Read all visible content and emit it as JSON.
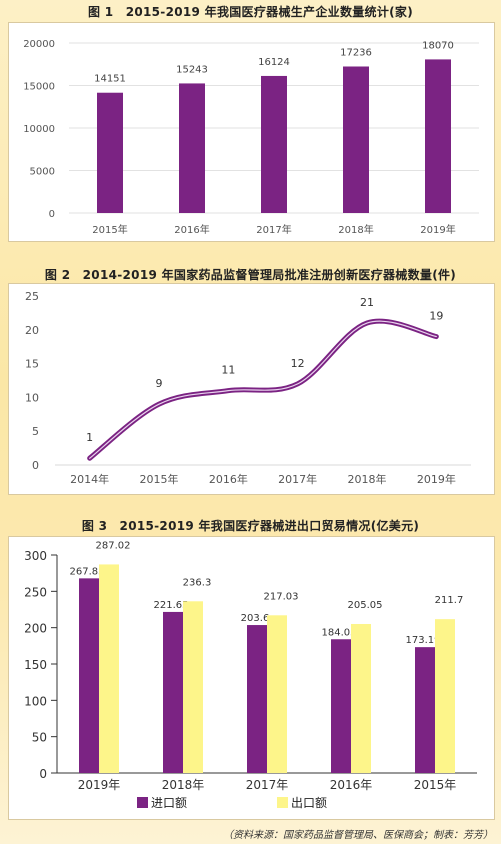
{
  "charts": [
    {
      "type": "bar",
      "title": "图 1　2015-2019 年我国医疗器械生产企业数量统计(家)",
      "categories": [
        "2015年",
        "2016年",
        "2017年",
        "2018年",
        "2019年"
      ],
      "values": [
        14151,
        15243,
        16124,
        17236,
        18070
      ],
      "value_labels": [
        "14151",
        "15243",
        "16124",
        "17236",
        "18070"
      ],
      "yticks": [
        "0",
        "5000",
        "10000",
        "15000",
        "20000"
      ],
      "ylim": [
        0,
        20000
      ],
      "color": "#7b2383"
    },
    {
      "type": "line",
      "title": "图 2　2014-2019 年国家药品监督管理局批准注册创新医疗器械数量(件)",
      "categories": [
        "2014年",
        "2015年",
        "2016年",
        "2017年",
        "2018年",
        "2019年"
      ],
      "values": [
        1,
        9,
        11,
        12,
        21,
        19
      ],
      "value_labels": [
        "1",
        "9",
        "11",
        "12",
        "21",
        "19"
      ],
      "yticks": [
        "0",
        "5",
        "10",
        "15",
        "20",
        "25"
      ],
      "ylim": [
        0,
        25
      ],
      "color": "#7b2383"
    },
    {
      "type": "bar",
      "title": "图 3　2015-2019 年我国医疗器械进出口贸易情况(亿美元)",
      "categories": [
        "2019年",
        "2018年",
        "2017年",
        "2016年",
        "2015年"
      ],
      "series": [
        {
          "name": "进口额",
          "values": [
            267.85,
            221.65,
            203.6,
            184.05,
            173.19
          ],
          "labels": [
            "267.85",
            "221.65",
            "203.6",
            "184.05",
            "173.19"
          ],
          "color": "#7b2383"
        },
        {
          "name": "出口额",
          "values": [
            287.02,
            236.3,
            217.03,
            205.05,
            211.7
          ],
          "labels": [
            "287.02",
            "236.3",
            "217.03",
            "205.05",
            "211.7"
          ],
          "color": "#fdf58a"
        }
      ],
      "yticks": [
        "0",
        "50",
        "100",
        "150",
        "200",
        "250",
        "300"
      ],
      "ylim": [
        0,
        300
      ]
    }
  ],
  "source": "（资料来源：国家药品监督管理局、医保商会；制表：芳芳）"
}
